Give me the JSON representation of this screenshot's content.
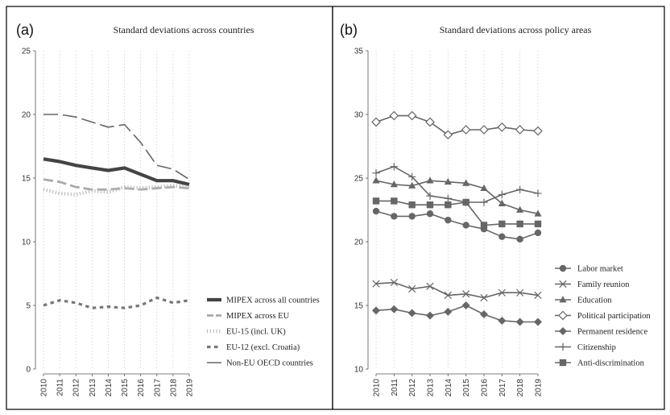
{
  "figure": {
    "panel_a_letter": "(a)",
    "panel_b_letter": "(b)"
  },
  "chart_data": [
    {
      "type": "line",
      "title": "Standard deviations across countries",
      "x": [
        "2010",
        "2011",
        "2012",
        "2013",
        "2014",
        "2015",
        "2016",
        "2017",
        "2018",
        "2019"
      ],
      "ylim": [
        0,
        25
      ],
      "yticks": [
        0,
        5,
        10,
        15,
        20,
        25
      ],
      "grid": true,
      "legend_position": "right",
      "series": [
        {
          "name": "MIPEX across all countries",
          "color": "#444444",
          "values": [
            16.5,
            16.3,
            16.0,
            15.8,
            15.6,
            15.8,
            15.3,
            14.8,
            14.8,
            14.5
          ]
        },
        {
          "name": "MIPEX across EU",
          "color": "#aaaaaa",
          "values": [
            14.9,
            14.7,
            14.3,
            14.1,
            14.1,
            14.2,
            14.1,
            14.2,
            14.3,
            14.2
          ]
        },
        {
          "name": "EU-15 (incl. UK)",
          "color": "#bbbbbb",
          "values": [
            14.1,
            13.8,
            13.7,
            14.0,
            13.9,
            14.3,
            14.2,
            14.3,
            14.4,
            14.3
          ]
        },
        {
          "name": "EU-12 (excl. Croatia)",
          "color": "#777777",
          "values": [
            5.0,
            5.4,
            5.2,
            4.8,
            4.9,
            4.8,
            5.0,
            5.6,
            5.2,
            5.4
          ]
        },
        {
          "name": "Non-EU OECD countries",
          "color": "#666666",
          "values": [
            20.0,
            20.0,
            19.8,
            19.4,
            19.0,
            19.2,
            17.8,
            16.0,
            15.7,
            14.9
          ]
        }
      ]
    },
    {
      "type": "line",
      "title": "Standard deviations across policy areas",
      "x": [
        "2010",
        "2011",
        "2012",
        "2013",
        "2014",
        "2015",
        "2016",
        "2017",
        "2018",
        "2019"
      ],
      "ylim": [
        10,
        35
      ],
      "yticks": [
        10,
        15,
        20,
        25,
        30,
        35
      ],
      "grid": true,
      "legend_position": "right",
      "series": [
        {
          "name": "Labor market",
          "color": "#666666",
          "marker": "circle",
          "values": [
            22.4,
            22.0,
            22.0,
            22.2,
            21.7,
            21.3,
            21.0,
            20.4,
            20.2,
            20.7
          ]
        },
        {
          "name": "Family reunion",
          "color": "#666666",
          "marker": "x",
          "values": [
            16.7,
            16.8,
            16.3,
            16.5,
            15.8,
            15.9,
            15.6,
            16.0,
            16.0,
            15.8
          ]
        },
        {
          "name": "Education",
          "color": "#666666",
          "marker": "triangle",
          "values": [
            24.8,
            24.5,
            24.4,
            24.8,
            24.7,
            24.6,
            24.2,
            23.0,
            22.5,
            22.2
          ]
        },
        {
          "name": "Political participation",
          "color": "#666666",
          "marker": "diamond-open",
          "values": [
            29.4,
            29.9,
            29.9,
            29.4,
            28.4,
            28.8,
            28.8,
            29.0,
            28.8,
            28.7
          ]
        },
        {
          "name": "Permanent residence",
          "color": "#666666",
          "marker": "diamond",
          "values": [
            14.6,
            14.7,
            14.4,
            14.2,
            14.5,
            15.0,
            14.3,
            13.8,
            13.7,
            13.7
          ]
        },
        {
          "name": "Citizenship",
          "color": "#666666",
          "marker": "plus",
          "values": [
            25.4,
            25.9,
            25.1,
            23.6,
            23.4,
            23.1,
            23.1,
            23.7,
            24.1,
            23.8
          ]
        },
        {
          "name": "Anti-discrimination",
          "color": "#666666",
          "marker": "square",
          "values": [
            23.2,
            23.2,
            22.9,
            22.9,
            22.9,
            23.1,
            21.3,
            21.4,
            21.4,
            21.4
          ]
        }
      ]
    }
  ]
}
